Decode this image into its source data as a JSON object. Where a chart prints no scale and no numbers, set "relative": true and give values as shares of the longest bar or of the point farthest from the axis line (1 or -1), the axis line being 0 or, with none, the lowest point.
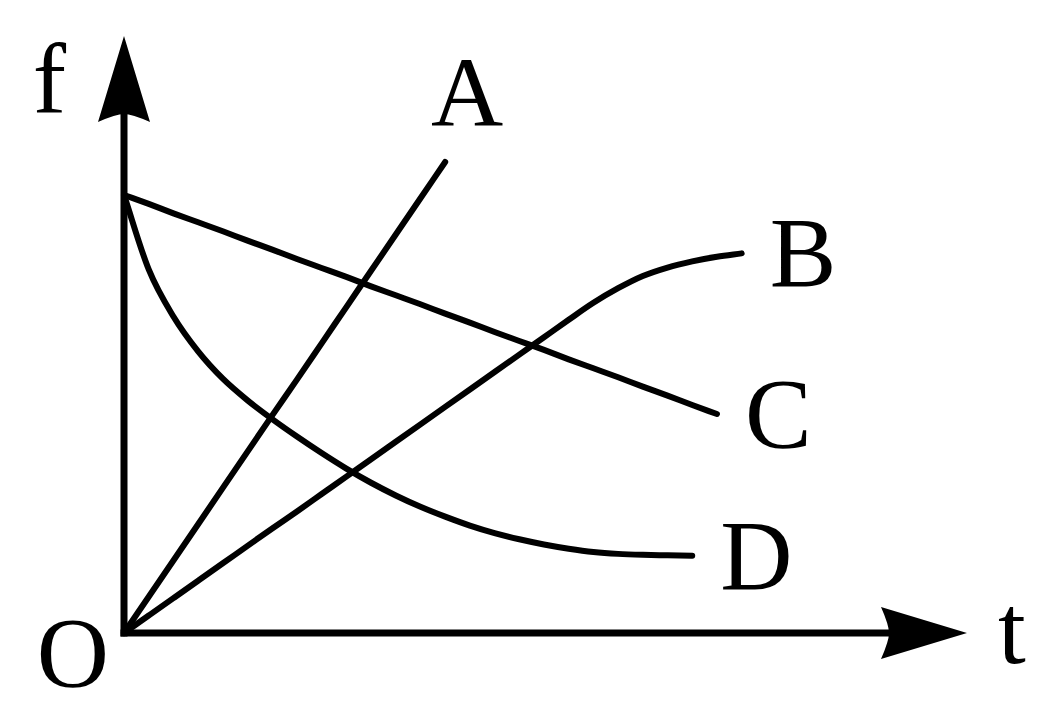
{
  "chart_data": {
    "type": "line",
    "xlabel": "t",
    "ylabel": "f",
    "annotations": [
      "O"
    ],
    "relative": true,
    "line_style": "solid",
    "categories": [
      null,
      null,
      null,
      null,
      null,
      null,
      null,
      null,
      null,
      null,
      null,
      null,
      null,
      null,
      null,
      null,
      null,
      null,
      null,
      null,
      null,
      null,
      null,
      null,
      null,
      null,
      null,
      null,
      null,
      null,
      null,
      null,
      null,
      null,
      null
    ],
    "series": [
      {
        "name": "A",
        "color": "#000000",
        "values": [
          0,
          0.077,
          0.154,
          0.231,
          0.308,
          0.385,
          0.462,
          0.538,
          0.615,
          0.692,
          0.769,
          0.846,
          0.923,
          1,
          null,
          null,
          null,
          null,
          null,
          null,
          null,
          null,
          null,
          null,
          null,
          null,
          null,
          null,
          null,
          null,
          null,
          null,
          null,
          null,
          null
        ]
      },
      {
        "name": "B",
        "color": "#000000",
        "values": [
          0,
          0.037,
          0.074,
          0.111,
          0.148,
          0.185,
          0.222,
          0.258,
          0.295,
          0.332,
          0.369,
          0.406,
          0.443,
          0.48,
          0.517,
          0.554,
          0.591,
          0.628,
          0.665,
          0.701,
          0.732,
          0.758,
          0.776,
          0.789,
          0.799,
          0.806,
          null,
          null,
          null,
          null,
          null,
          null,
          null,
          null,
          null
        ]
      },
      {
        "name": "C",
        "color": "#000000",
        "values": [
          0.93,
          0.911,
          0.891,
          0.872,
          0.853,
          0.833,
          0.814,
          0.794,
          0.775,
          0.756,
          0.736,
          0.717,
          0.698,
          0.678,
          0.659,
          0.639,
          0.62,
          0.601,
          0.581,
          0.562,
          0.543,
          0.523,
          0.504,
          0.484,
          0.465,
          null,
          null,
          null,
          null,
          null,
          null,
          null,
          null,
          null,
          null
        ]
      },
      {
        "name": "D",
        "color": "#000000",
        "values": [
          0.93,
          0.772,
          0.672,
          0.598,
          0.54,
          0.494,
          0.454,
          0.417,
          0.382,
          0.349,
          0.319,
          0.292,
          0.268,
          0.247,
          0.228,
          0.212,
          0.199,
          0.188,
          0.179,
          0.172,
          0.168,
          0.166,
          0.165,
          0.164,
          null,
          null,
          null,
          null,
          null,
          null,
          null,
          null,
          null,
          null,
          null
        ]
      }
    ]
  }
}
